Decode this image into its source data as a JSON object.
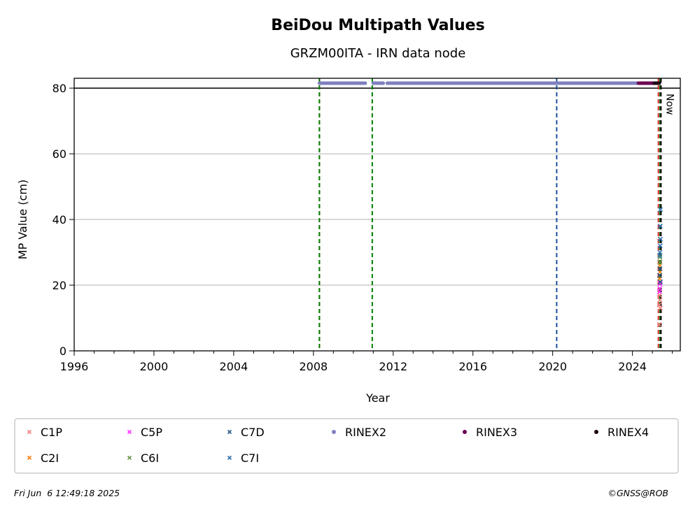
{
  "chart_data": {
    "type": "scatter",
    "title": "BeiDou Multipath Values",
    "subtitle": "GRZM00ITA - IRN data node",
    "xlabel": "Year",
    "ylabel": "MP Value (cm)",
    "xlim": [
      1996,
      2026.4
    ],
    "ylim": [
      0,
      83
    ],
    "x_ticks": [
      1996,
      2000,
      2004,
      2008,
      2012,
      2016,
      2020,
      2024
    ],
    "y_ticks": [
      0,
      20,
      40,
      60,
      80
    ],
    "x_tick_labels": [
      "1996",
      "2000",
      "2004",
      "2008",
      "2012",
      "2016",
      "2020",
      "2024"
    ],
    "y_tick_labels": [
      "0",
      "20",
      "40",
      "60",
      "80"
    ],
    "grid": "horizontal",
    "reference_line_y": 80,
    "legend_position": "bottom",
    "vertical_lines": [
      {
        "x": 2008.3,
        "color": "#d62728",
        "style": "dashed"
      },
      {
        "x": 2008.3,
        "color": "#008000",
        "style": "dashed"
      },
      {
        "x": 2010.95,
        "color": "#008000",
        "style": "dashed"
      },
      {
        "x": 2020.2,
        "color": "#1f4fa0",
        "style": "dashed"
      },
      {
        "x": 2025.3,
        "color": "#d62728",
        "style": "dashed"
      },
      {
        "x": 2025.38,
        "color": "#008000",
        "style": "dashed"
      },
      {
        "x": 2025.43,
        "color": "#000000",
        "style": "dashed"
      }
    ],
    "now_label": "Now",
    "series": [
      {
        "name": "C1P",
        "marker": "x",
        "color": "#f08080",
        "points": [
          [
            2025.35,
            8
          ],
          [
            2025.35,
            14
          ],
          [
            2025.38,
            15.5
          ],
          [
            2025.36,
            17
          ],
          [
            2025.4,
            13
          ]
        ]
      },
      {
        "name": "C2I",
        "marker": "x",
        "color": "#ff7f0e",
        "points": [
          [
            2025.36,
            22
          ],
          [
            2025.38,
            24
          ],
          [
            2025.37,
            26
          ]
        ]
      },
      {
        "name": "C5P",
        "marker": "x",
        "color": "#ff33ff",
        "points": [
          [
            2025.37,
            19
          ],
          [
            2025.39,
            20.5
          ],
          [
            2025.36,
            18
          ]
        ]
      },
      {
        "name": "C6I",
        "marker": "x",
        "color": "#6a9a4a",
        "points": [
          [
            2025.37,
            27
          ],
          [
            2025.38,
            28.5
          ]
        ]
      },
      {
        "name": "C7D",
        "marker": "x",
        "color": "#2a5a8a",
        "points": [
          [
            2025.36,
            23
          ],
          [
            2025.38,
            25
          ],
          [
            2025.4,
            21
          ]
        ]
      },
      {
        "name": "C7I",
        "marker": "x",
        "color": "#3070b0",
        "points": [
          [
            2025.38,
            30
          ],
          [
            2025.39,
            32
          ],
          [
            2025.37,
            29
          ],
          [
            2025.4,
            34
          ],
          [
            2025.39,
            38
          ],
          [
            2025.4,
            43
          ]
        ]
      },
      {
        "name": "RINEX2",
        "marker": "dot",
        "color": "#8080c0",
        "ranges": [
          [
            2008.3,
            2010.6,
            81.5
          ],
          [
            2011.0,
            2011.5,
            81.5
          ],
          [
            2011.7,
            2024.6,
            81.5
          ]
        ]
      },
      {
        "name": "RINEX3",
        "marker": "dot",
        "color": "#6a0050",
        "ranges": [
          [
            2024.3,
            2025.3,
            81.5
          ]
        ]
      },
      {
        "name": "RINEX4",
        "marker": "dot",
        "color": "#1a0010",
        "ranges": [
          [
            2025.1,
            2025.35,
            81.5
          ]
        ]
      }
    ]
  },
  "legend_rows": [
    [
      "C1P",
      "C5P",
      "C7D",
      "RINEX2",
      "RINEX3",
      "RINEX4"
    ],
    [
      "C2I",
      "C6I",
      "C7I"
    ]
  ],
  "footer": {
    "timestamp": "Fri Jun  6 12:49:18 2025",
    "credit": "©GNSS@ROB"
  }
}
